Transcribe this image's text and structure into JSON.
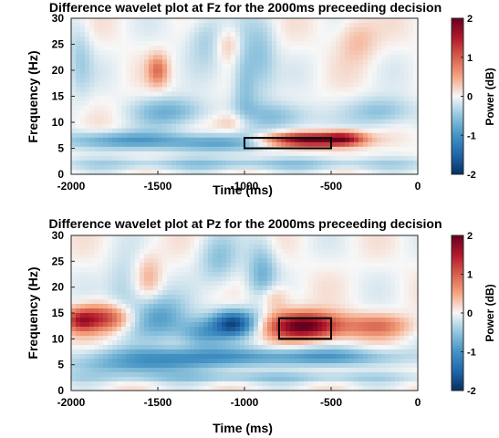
{
  "chart_data": [
    {
      "type": "heatmap",
      "title": "Difference wavelet plot at Fz for the 2000ms preceeding decision",
      "xlabel": "Time (ms)",
      "ylabel": "Frequency (Hz)",
      "colorbar_label": "Power (dB)",
      "xlim": [
        -2000,
        0
      ],
      "ylim": [
        0,
        30
      ],
      "clim": [
        -2,
        2
      ],
      "xticks": [
        -2000,
        -1500,
        -1000,
        -500,
        0
      ],
      "yticks": [
        0,
        5,
        10,
        15,
        20,
        25,
        30
      ],
      "cbticks": [
        -2,
        -1,
        0,
        1,
        2
      ],
      "colormap": "blue-white-red",
      "blobs": [
        {
          "t": -620,
          "f": 6.6,
          "amp": 2.0,
          "st": 180,
          "sf": 0.9
        },
        {
          "t": -420,
          "f": 7.0,
          "amp": 1.0,
          "st": 80,
          "sf": 1.0
        },
        {
          "t": -1700,
          "f": 6.5,
          "amp": -0.9,
          "st": 250,
          "sf": 1.2
        },
        {
          "t": -1150,
          "f": 6.0,
          "amp": -0.8,
          "st": 200,
          "sf": 1.2
        },
        {
          "t": -1420,
          "f": 12.0,
          "amp": -0.7,
          "st": 150,
          "sf": 2.0
        },
        {
          "t": -800,
          "f": 11.0,
          "amp": -0.6,
          "st": 150,
          "sf": 2.0
        },
        {
          "t": -200,
          "f": 12.0,
          "amp": -0.6,
          "st": 130,
          "sf": 2.0
        },
        {
          "t": -1000,
          "f": 18.0,
          "amp": -0.55,
          "st": 50,
          "sf": 6.0
        },
        {
          "t": -900,
          "f": 22.0,
          "amp": -0.5,
          "st": 60,
          "sf": 5.0
        },
        {
          "t": -1200,
          "f": 26.0,
          "amp": -0.5,
          "st": 90,
          "sf": 3.5
        },
        {
          "t": -1500,
          "f": 20.0,
          "amp": 0.8,
          "st": 40,
          "sf": 2.0
        },
        {
          "t": -1100,
          "f": 25.0,
          "amp": 0.5,
          "st": 60,
          "sf": 2.5
        },
        {
          "t": -1050,
          "f": 10.0,
          "amp": 0.5,
          "st": 80,
          "sf": 1.5
        },
        {
          "t": -350,
          "f": 26.0,
          "amp": 0.4,
          "st": 80,
          "sf": 3.0
        },
        {
          "t": -1950,
          "f": 22.0,
          "amp": -0.4,
          "st": 50,
          "sf": 5.0
        },
        {
          "t": -1000,
          "f": 2.0,
          "amp": -0.5,
          "st": 900,
          "sf": 0.8
        }
      ],
      "rect": {
        "t0": -1000,
        "t1": -500,
        "f0": 5,
        "f1": 7
      }
    },
    {
      "type": "heatmap",
      "title": "Difference wavelet plot at Pz for the 2000ms preceeding decision",
      "xlabel": "Time (ms)",
      "ylabel": "Frequency (Hz)",
      "colorbar_label": "Power (dB)",
      "xlim": [
        -2000,
        0
      ],
      "ylim": [
        0,
        30
      ],
      "clim": [
        -2,
        2
      ],
      "xticks": [
        -2000,
        -1500,
        -1000,
        -500,
        0
      ],
      "yticks": [
        0,
        5,
        10,
        15,
        20,
        25,
        30
      ],
      "cbticks": [
        -2,
        -1,
        0,
        1,
        2
      ],
      "colormap": "blue-white-red",
      "blobs": [
        {
          "t": -650,
          "f": 12.5,
          "amp": 2.1,
          "st": 150,
          "sf": 1.8
        },
        {
          "t": -1820,
          "f": 14.0,
          "amp": 1.3,
          "st": 120,
          "sf": 1.8
        },
        {
          "t": -1950,
          "f": 13.5,
          "amp": 0.9,
          "st": 60,
          "sf": 1.5
        },
        {
          "t": -230,
          "f": 12.5,
          "amp": 0.8,
          "st": 130,
          "sf": 1.5
        },
        {
          "t": -1060,
          "f": 13.0,
          "amp": -1.7,
          "st": 90,
          "sf": 1.8
        },
        {
          "t": -1500,
          "f": 14.0,
          "amp": -0.9,
          "st": 120,
          "sf": 3.0
        },
        {
          "t": -1250,
          "f": 11.0,
          "amp": -0.8,
          "st": 100,
          "sf": 2.0
        },
        {
          "t": -1350,
          "f": 6.5,
          "amp": -1.0,
          "st": 400,
          "sf": 1.3
        },
        {
          "t": -500,
          "f": 6.5,
          "amp": -0.8,
          "st": 300,
          "sf": 1.2
        },
        {
          "t": -1600,
          "f": 4.5,
          "amp": -0.6,
          "st": 300,
          "sf": 1.0
        },
        {
          "t": -900,
          "f": 22.0,
          "amp": -0.7,
          "st": 60,
          "sf": 5.0
        },
        {
          "t": -1150,
          "f": 25.0,
          "amp": -0.5,
          "st": 80,
          "sf": 3.5
        },
        {
          "t": -1700,
          "f": 20.0,
          "amp": -0.4,
          "st": 70,
          "sf": 4.0
        },
        {
          "t": -850,
          "f": 18.0,
          "amp": 0.6,
          "st": 70,
          "sf": 2.0
        },
        {
          "t": -1550,
          "f": 22.0,
          "amp": 0.4,
          "st": 50,
          "sf": 3.0
        },
        {
          "t": -1000,
          "f": 2.5,
          "amp": -0.5,
          "st": 900,
          "sf": 0.7
        }
      ],
      "rect": {
        "t0": -800,
        "t1": -500,
        "f0": 10,
        "f1": 14
      }
    }
  ]
}
